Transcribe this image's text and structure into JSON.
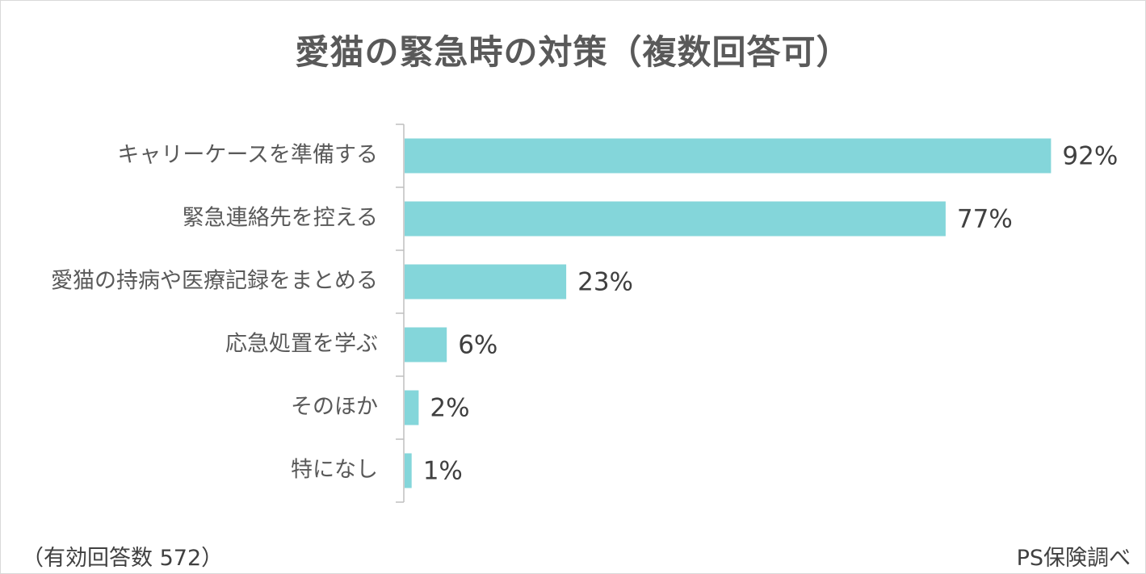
{
  "colors": {
    "bar": "#84d6da",
    "axis": "#bfbfbf",
    "title": "#595959",
    "text": "#404040"
  },
  "chart_data": {
    "type": "bar",
    "orientation": "horizontal",
    "title": "愛猫の緊急時の対策（複数回答可）",
    "categories": [
      "キャリーケースを準備する",
      "緊急連絡先を控える",
      "愛猫の持病や医療記録をまとめる",
      "応急処置を学ぶ",
      "そのほか",
      "特になし"
    ],
    "values": [
      92,
      77,
      23,
      6,
      2,
      1
    ],
    "value_labels": [
      "92%",
      "77%",
      "23%",
      "6%",
      "2%",
      "1%"
    ],
    "xlim": [
      0,
      100
    ],
    "grid": false,
    "legend": false
  },
  "footer": {
    "note": "（有効回答数 572）",
    "source": "PS保険調べ"
  }
}
